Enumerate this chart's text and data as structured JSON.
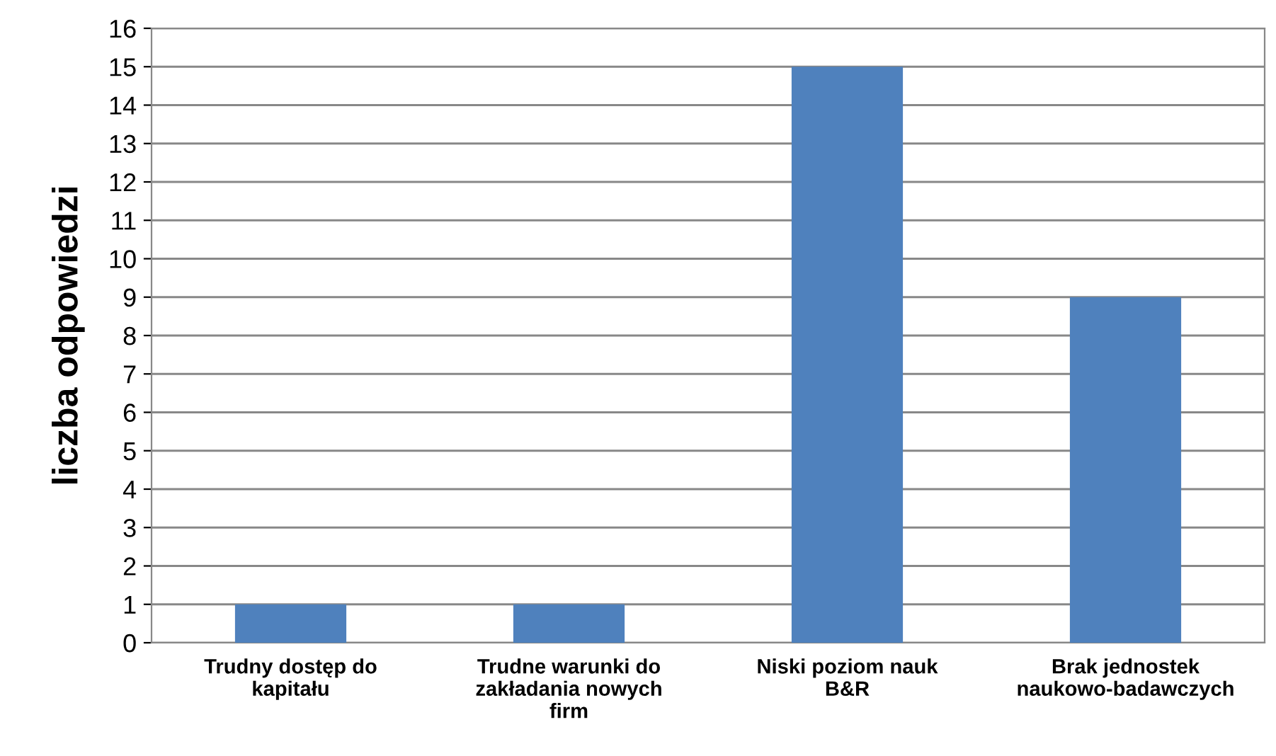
{
  "chart_data": {
    "type": "bar",
    "ylabel": "liczba odpowiedzi",
    "categories": [
      "Trudny dostęp do\nkapitału",
      "Trudne warunki do\nzakładania nowych\nfirm",
      "Niski poziom nauk\nB&R",
      "Brak jednostek\nnaukowo-badawczych"
    ],
    "values": [
      1,
      1,
      15,
      9
    ],
    "color": "#4f81bd",
    "ylim": [
      0,
      16
    ],
    "yticks": [
      0,
      1,
      2,
      3,
      4,
      5,
      6,
      7,
      8,
      9,
      10,
      11,
      12,
      13,
      14,
      15,
      16
    ],
    "grid": "y"
  }
}
